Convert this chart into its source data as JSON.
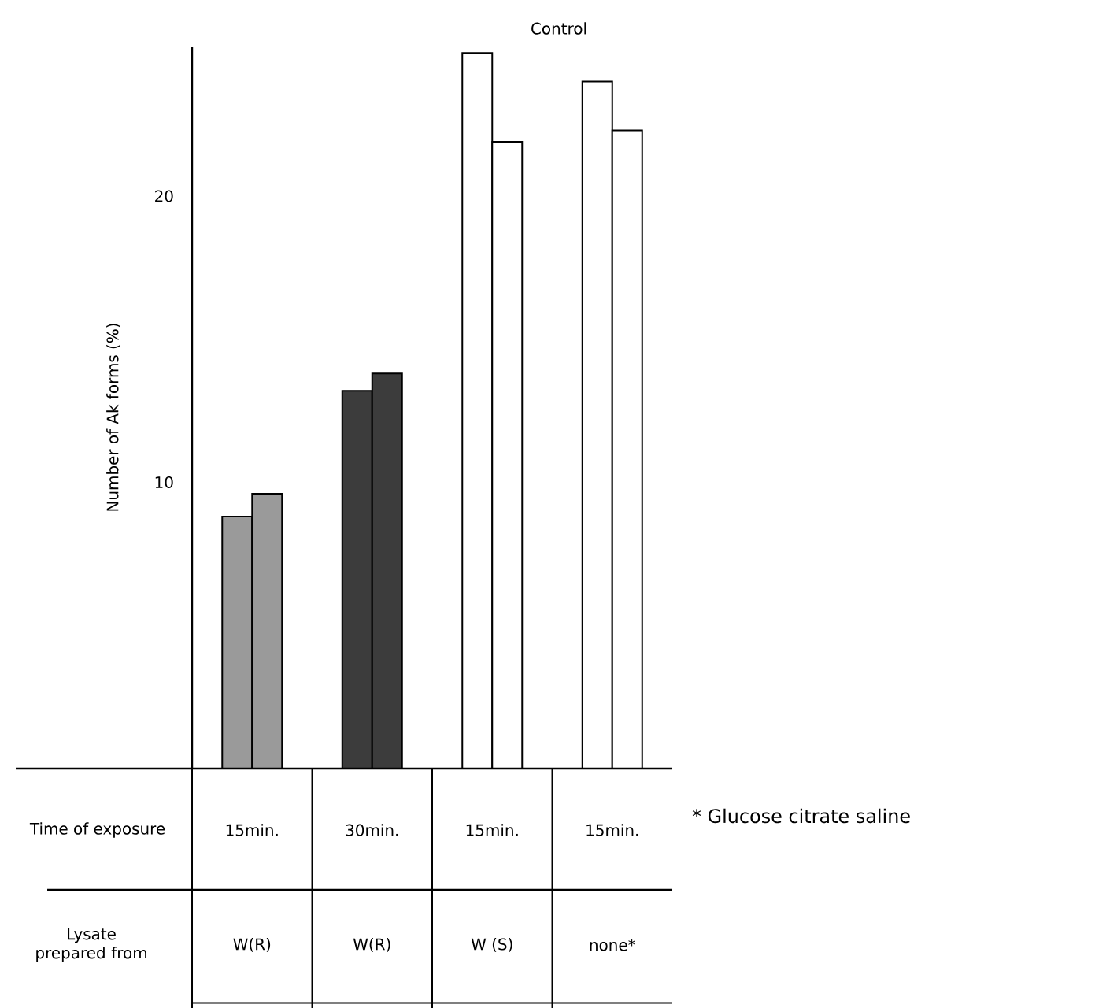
{
  "chart_data": {
    "type": "bar",
    "ylabel": "Number of Ak forms (%)",
    "categories": [
      "15min.",
      "30min.",
      "15min.",
      "15min."
    ],
    "series": [
      {
        "colors": [
          "#9a9a9a",
          "#3c3c3c",
          "#ffffff",
          "#ffffff"
        ],
        "values": [
          8.8,
          13.2,
          25.0,
          24.0
        ]
      },
      {
        "colors": [
          "#9a9a9a",
          "#3c3c3c",
          "#ffffff",
          "#ffffff"
        ],
        "values": [
          9.6,
          13.8,
          21.9,
          22.3
        ]
      }
    ],
    "ylim": [
      0,
      25.2
    ],
    "yticks": [
      10,
      20
    ],
    "annotations": [
      "Control",
      "Time of exposure",
      "Lysate prepared from",
      "W(R)",
      "W(R)",
      "W (S)",
      "none*",
      "* Glucose citrate saline"
    ]
  }
}
